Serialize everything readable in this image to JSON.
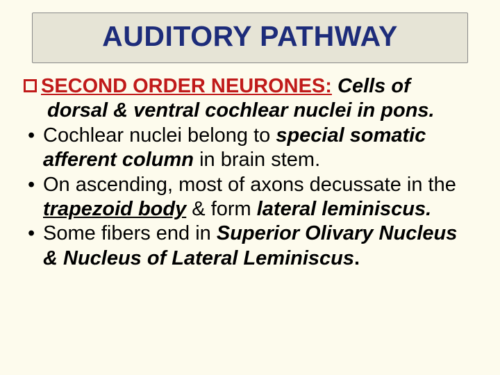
{
  "colors": {
    "slide_bg": "#fdfbed",
    "title_box_bg": "#e6e4d6",
    "title_color": "#1d2c7a",
    "heading_color": "#c01a1a",
    "body_color": "#000000",
    "bullet_border": "#c01a1a"
  },
  "title": "AUDITORY PATHWAY",
  "heading": {
    "label": "SECOND ORDER NEURONES:",
    "rest_line1": " Cells of",
    "rest_line2": "dorsal & ventral cochlear nuclei in pons."
  },
  "bullets": [
    {
      "parts": [
        {
          "t": "Cochlear nuclei belong to ",
          "b": false,
          "i": false,
          "u": false
        },
        {
          "t": "special somatic afferent column",
          "b": true,
          "i": true,
          "u": false
        },
        {
          "t": " in brain stem.",
          "b": false,
          "i": false,
          "u": false
        }
      ]
    },
    {
      "parts": [
        {
          "t": "On ascending, most of axons decussate in the ",
          "b": false,
          "i": false,
          "u": false
        },
        {
          "t": "trapezoid body",
          "b": true,
          "i": true,
          "u": true
        },
        {
          "t": "  & form ",
          "b": false,
          "i": false,
          "u": false
        },
        {
          "t": "lateral leminiscus.",
          "b": true,
          "i": true,
          "u": false
        }
      ]
    },
    {
      "parts": [
        {
          "t": "Some fibers end in ",
          "b": false,
          "i": false,
          "u": false
        },
        {
          "t": "Superior Olivary Nucleus & Nucleus of Lateral Leminiscus",
          "b": true,
          "i": true,
          "u": false
        },
        {
          "t": ".",
          "b": true,
          "i": false,
          "u": false
        }
      ]
    }
  ]
}
